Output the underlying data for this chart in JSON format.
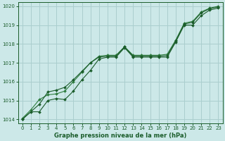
{
  "title": "Graphe pression niveau de la mer (hPa)",
  "bg_color": "#cce8e8",
  "grid_color": "#aacece",
  "line_color_dark": "#1a5c2a",
  "line_color_mid": "#2e7d3e",
  "xlim": [
    -0.5,
    23.5
  ],
  "ylim": [
    1013.8,
    1020.2
  ],
  "xticks": [
    0,
    1,
    2,
    3,
    4,
    5,
    6,
    7,
    8,
    9,
    10,
    11,
    12,
    13,
    14,
    15,
    16,
    17,
    18,
    19,
    20,
    21,
    22,
    23
  ],
  "yticks": [
    1014,
    1015,
    1016,
    1017,
    1018,
    1019,
    1020
  ],
  "series1_x": [
    0,
    1,
    2,
    3,
    4,
    5,
    6,
    7,
    8,
    9,
    10,
    11,
    12,
    13,
    14,
    15,
    16,
    17,
    18,
    19,
    20,
    21,
    22,
    23
  ],
  "series1_y": [
    1014.0,
    1014.4,
    1014.4,
    1015.0,
    1015.1,
    1015.05,
    1015.5,
    1016.1,
    1016.6,
    1017.2,
    1017.3,
    1017.3,
    1017.8,
    1017.3,
    1017.3,
    1017.3,
    1017.3,
    1017.3,
    1018.1,
    1019.0,
    1019.0,
    1019.5,
    1019.8,
    1019.9
  ],
  "series2_x": [
    0,
    1,
    2,
    3,
    4,
    5,
    6,
    7,
    8,
    9,
    10,
    11,
    12,
    13,
    14,
    15,
    16,
    17,
    18,
    19,
    20,
    21,
    22,
    23
  ],
  "series2_y": [
    1014.05,
    1014.5,
    1015.05,
    1015.3,
    1015.35,
    1015.5,
    1016.0,
    1016.5,
    1017.0,
    1017.35,
    1017.4,
    1017.4,
    1017.85,
    1017.4,
    1017.4,
    1017.4,
    1017.4,
    1017.45,
    1018.2,
    1019.1,
    1019.2,
    1019.7,
    1019.9,
    1020.0
  ],
  "series3_x": [
    0,
    2,
    3,
    4,
    5,
    6,
    7,
    8,
    9,
    10,
    11,
    12,
    13,
    14,
    15,
    16,
    17,
    18,
    19,
    20,
    21,
    22,
    23
  ],
  "series3_y": [
    1014.0,
    1014.8,
    1015.45,
    1015.55,
    1015.7,
    1016.1,
    1016.55,
    1017.0,
    1017.3,
    1017.35,
    1017.35,
    1017.85,
    1017.35,
    1017.35,
    1017.35,
    1017.35,
    1017.38,
    1018.15,
    1019.05,
    1019.15,
    1019.65,
    1019.87,
    1019.97
  ]
}
